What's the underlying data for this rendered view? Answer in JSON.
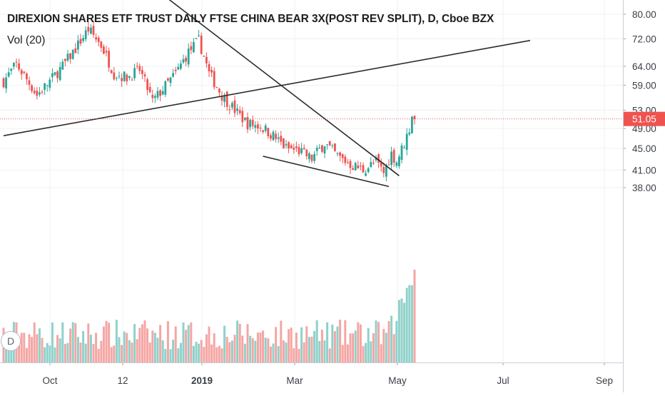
{
  "header": {
    "title": "DIREXION SHARES ETF TRUST DAILY FTSE CHINA BEAR 3X(POST REV SPLIT), D, Cboe BZX",
    "volume_label": "Vol (20)",
    "badge": "D"
  },
  "colors": {
    "up": "#26a69a",
    "down": "#ef5350",
    "up_volume": "#8fd1ca",
    "down_volume": "#f4a6a4",
    "grid": "#eef0f3",
    "trendline": "#2c2c2c",
    "last_price_line": "#ef5350",
    "price_tag_bg": "#ef5350"
  },
  "chart_data": {
    "type": "candlestick",
    "title": "DIREXION SHARES ETF TRUST DAILY FTSE CHINA BEAR 3X(POST REV SPLIT), D, Cboe BZX",
    "price_scale": "log",
    "y_ticks": [
      "38.00",
      "41.00",
      "45.00",
      "49.00",
      "53.00",
      "59.00",
      "64.00",
      "72.00",
      "80.00"
    ],
    "x_ticks": [
      "Oct",
      "12",
      "2019",
      "Mar",
      "May",
      "Jul",
      "Sep"
    ],
    "last_price": "51.05",
    "grid": true,
    "volume_series": "Vol (20)",
    "close_path": [
      {
        "i": 0,
        "c": 60.0
      },
      {
        "i": 5,
        "c": 64.5
      },
      {
        "i": 8,
        "c": 61.5
      },
      {
        "i": 13,
        "c": 56.5
      },
      {
        "i": 18,
        "c": 60.0
      },
      {
        "i": 23,
        "c": 64.0
      },
      {
        "i": 28,
        "c": 69.0
      },
      {
        "i": 33,
        "c": 75.0
      },
      {
        "i": 38,
        "c": 70.0
      },
      {
        "i": 43,
        "c": 62.0
      },
      {
        "i": 48,
        "c": 61.0
      },
      {
        "i": 53,
        "c": 63.0
      },
      {
        "i": 58,
        "c": 55.0
      },
      {
        "i": 62,
        "c": 58.0
      },
      {
        "i": 67,
        "c": 62.0
      },
      {
        "i": 72,
        "c": 68.0
      },
      {
        "i": 76,
        "c": 71.5
      },
      {
        "i": 80,
        "c": 62.0
      },
      {
        "i": 85,
        "c": 56.5
      },
      {
        "i": 90,
        "c": 53.0
      },
      {
        "i": 95,
        "c": 50.0
      },
      {
        "i": 100,
        "c": 49.5
      },
      {
        "i": 105,
        "c": 47.5
      },
      {
        "i": 110,
        "c": 45.0
      },
      {
        "i": 115,
        "c": 44.5
      },
      {
        "i": 120,
        "c": 43.0
      },
      {
        "i": 125,
        "c": 46.0
      },
      {
        "i": 130,
        "c": 43.5
      },
      {
        "i": 135,
        "c": 42.0
      },
      {
        "i": 140,
        "c": 41.0
      },
      {
        "i": 145,
        "c": 42.5
      },
      {
        "i": 148,
        "c": 40.5
      },
      {
        "i": 151,
        "c": 44.0
      },
      {
        "i": 153,
        "c": 42.5
      },
      {
        "i": 156,
        "c": 46.0
      },
      {
        "i": 158,
        "c": 49.0
      },
      {
        "i": 159,
        "c": 52.0
      },
      {
        "i": 160,
        "c": 51.05
      }
    ],
    "trendlines": [
      {
        "name": "rising",
        "from": {
          "i": 0,
          "price": 47.5
        },
        "to": {
          "i": 205,
          "price": 71.5
        }
      },
      {
        "name": "falling-upper",
        "from": {
          "i": 62,
          "price": 87.0
        },
        "to": {
          "i": 154,
          "price": 40.0
        }
      },
      {
        "name": "falling-lower",
        "from": {
          "i": 101,
          "price": 43.5
        },
        "to": {
          "i": 150,
          "price": 38.2
        }
      }
    ]
  }
}
